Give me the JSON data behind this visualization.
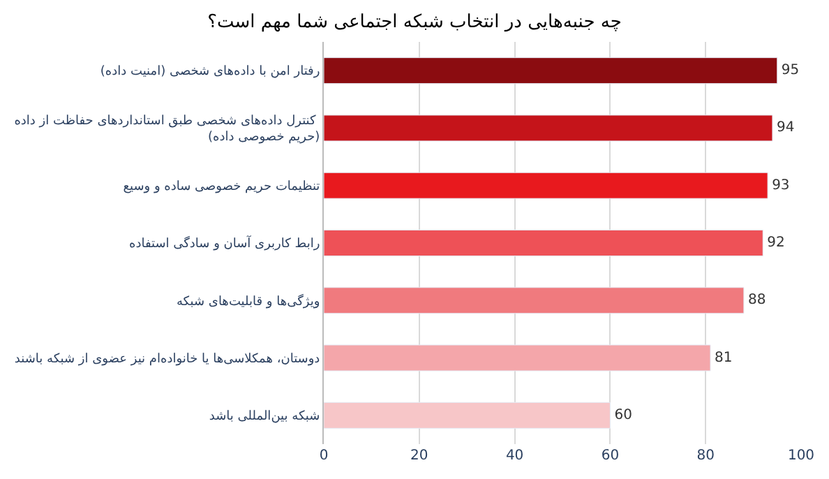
{
  "chart_data": {
    "type": "bar",
    "orientation": "horizontal",
    "title": "چه جنبه‌هایی در انتخاب شبکه اجتماعی شما مهم است؟",
    "categories": [
      "رفتار امن با داده‌های شخصی (امنیت داده)",
      "کنترل داده‌های شخصی طبق استانداردهای حفاظت از داده $^{}$(حریم خصوصی داده)",
      "تنظیمات حریم خصوصی ساده و وسیع",
      "رابط کاربری آسان و سادگی استفاده",
      "ویژگی‌ها و قابلیت‌های شبکه",
      "دوستان، همکلاسی‌ها یا خانواده‌ام نیز عضوی از شبکه باشند",
      "شبکه بین‌المللی باشد"
    ],
    "values": [
      95,
      94,
      93,
      92,
      88,
      81,
      60
    ],
    "colors": [
      "#8b0c10",
      "#c5141a",
      "#e8191e",
      "#ee5157",
      "#f07a7e",
      "#f4a6aa",
      "#f7c6c8"
    ],
    "xlim": [
      0,
      100
    ],
    "xticks": [
      0,
      20,
      40,
      60,
      80,
      100
    ],
    "grid": "x",
    "data_labels": true
  }
}
